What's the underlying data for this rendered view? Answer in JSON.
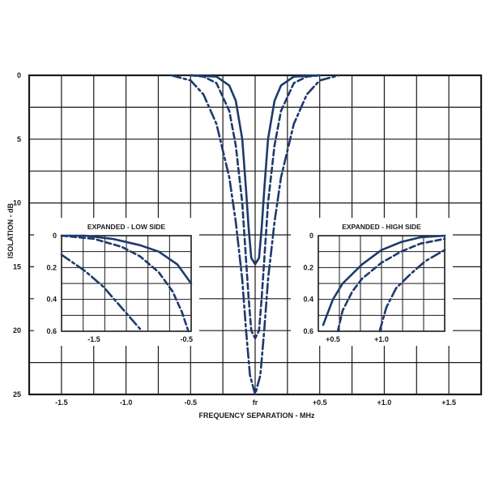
{
  "chart_data": [
    {
      "type": "line",
      "xlabel": "FREQUENCY SEPARATION - MHz",
      "ylabel": "ISOLATION - dB",
      "xlim": [
        -1.75,
        1.75
      ],
      "ylim": [
        0,
        25
      ],
      "y_inverted": true,
      "grid": true,
      "x_tick_labels": [
        "-1.5",
        "-1.0",
        "-0.5",
        "fr",
        "+0.5",
        "+1.0",
        "+1.5"
      ],
      "x_tick_values": [
        -1.5,
        -1.0,
        -0.5,
        0,
        0.5,
        1.0,
        1.5
      ],
      "y_tick_labels": [
        "0",
        "5",
        "10",
        "15",
        "20",
        "25"
      ],
      "y_tick_values": [
        0,
        5,
        10,
        15,
        20,
        25
      ],
      "series": [
        {
          "style": "solid",
          "color": "#1d3a6b",
          "x": [
            -0.5,
            -0.3,
            -0.2,
            -0.15,
            -0.1,
            -0.07,
            -0.05,
            -0.03,
            0,
            0.03,
            0.05,
            0.07,
            0.1,
            0.15,
            0.2,
            0.3,
            0.5
          ],
          "values": [
            0,
            0.1,
            0.8,
            2.0,
            5.0,
            9.0,
            12.0,
            14.3,
            14.8,
            14.3,
            12.0,
            9.0,
            5.0,
            2.0,
            0.8,
            0.1,
            0
          ]
        },
        {
          "style": "dashed",
          "color": "#1d3a6b",
          "x": [
            -0.5,
            -0.4,
            -0.3,
            -0.2,
            -0.15,
            -0.1,
            -0.07,
            -0.05,
            -0.03,
            0,
            0.03,
            0.05,
            0.07,
            0.1,
            0.15,
            0.2,
            0.3,
            0.4,
            0.5
          ],
          "values": [
            0,
            0.1,
            0.6,
            2.8,
            5.5,
            10.0,
            14.5,
            17.5,
            20.0,
            20.6,
            20.0,
            17.5,
            14.5,
            10.0,
            5.5,
            2.8,
            0.6,
            0.1,
            0
          ]
        },
        {
          "style": "dash-dot",
          "color": "#1d3a6b",
          "x": [
            -0.65,
            -0.5,
            -0.4,
            -0.3,
            -0.2,
            -0.15,
            -0.1,
            -0.07,
            -0.04,
            0,
            0.04,
            0.07,
            0.1,
            0.15,
            0.2,
            0.3,
            0.4,
            0.5,
            0.65
          ],
          "values": [
            0,
            0.4,
            1.5,
            3.8,
            8.0,
            11.5,
            16.0,
            20.0,
            23.5,
            25.0,
            23.5,
            20.0,
            16.0,
            11.5,
            8.0,
            3.8,
            1.5,
            0.4,
            0
          ]
        }
      ]
    },
    {
      "type": "line",
      "title": "EXPANDED - LOW SIDE",
      "xlim": [
        -1.85,
        -0.45
      ],
      "ylim": [
        0,
        0.6
      ],
      "y_inverted": true,
      "grid": true,
      "x_tick_labels": [
        "-1.5",
        "-0.5"
      ],
      "x_tick_values": [
        -1.5,
        -0.5
      ],
      "y_tick_labels": [
        "0",
        "0.2",
        "0.4",
        "0.6"
      ],
      "y_tick_values": [
        0,
        0.2,
        0.4,
        0.6
      ],
      "series": [
        {
          "style": "solid",
          "x": [
            -1.85,
            -1.6,
            -1.3,
            -1.0,
            -0.8,
            -0.6,
            -0.45
          ],
          "values": [
            0.0,
            0.0,
            0.02,
            0.06,
            0.1,
            0.18,
            0.3
          ]
        },
        {
          "style": "dashed",
          "x": [
            -1.85,
            -1.5,
            -1.2,
            -1.0,
            -0.8,
            -0.65,
            -0.55,
            -0.48
          ],
          "values": [
            0.0,
            0.02,
            0.07,
            0.13,
            0.23,
            0.35,
            0.48,
            0.6
          ]
        },
        {
          "style": "dash-dot",
          "x": [
            -1.85,
            -1.6,
            -1.4,
            -1.25,
            -1.1,
            -0.98
          ],
          "values": [
            0.12,
            0.22,
            0.32,
            0.42,
            0.52,
            0.6
          ]
        }
      ]
    },
    {
      "type": "line",
      "title": "EXPANDED - HIGH SIDE",
      "xlim": [
        0.35,
        1.65
      ],
      "ylim": [
        0,
        0.6
      ],
      "y_inverted": true,
      "grid": true,
      "x_tick_labels": [
        "+0.5",
        "+1.0"
      ],
      "x_tick_values": [
        0.5,
        1.0
      ],
      "y_tick_labels": [
        "0",
        "0.2",
        "0.4",
        "0.6"
      ],
      "y_tick_values": [
        0,
        0.2,
        0.4,
        0.6
      ],
      "series": [
        {
          "style": "solid",
          "x": [
            0.4,
            0.5,
            0.6,
            0.8,
            1.0,
            1.2,
            1.4,
            1.65
          ],
          "values": [
            0.56,
            0.4,
            0.3,
            0.18,
            0.09,
            0.04,
            0.01,
            0.0
          ]
        },
        {
          "style": "dashed",
          "x": [
            0.55,
            0.6,
            0.7,
            0.8,
            1.0,
            1.2,
            1.4,
            1.65
          ],
          "values": [
            0.6,
            0.47,
            0.35,
            0.27,
            0.17,
            0.1,
            0.05,
            0.02
          ]
        },
        {
          "style": "dash-dot",
          "x": [
            0.98,
            1.05,
            1.15,
            1.3,
            1.45,
            1.65
          ],
          "values": [
            0.6,
            0.45,
            0.33,
            0.24,
            0.16,
            0.09
          ]
        }
      ]
    }
  ]
}
